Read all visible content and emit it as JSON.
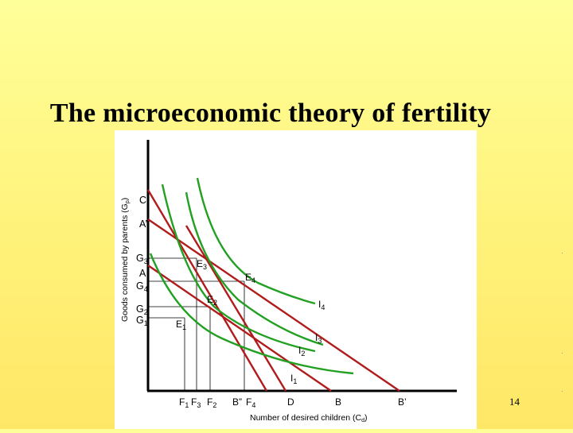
{
  "slide": {
    "title": "The microeconomic theory of fertility",
    "page_number": "14"
  },
  "diagram": {
    "y_axis_label": "Goods consumed by parents (G",
    "y_axis_sub": "p",
    "y_axis_close": ")",
    "x_axis_label": "Number of desired children (C",
    "x_axis_sub": "d",
    "x_axis_close": ")",
    "y_ticks": {
      "C": "C",
      "A_prime": "A’",
      "G3": "G",
      "G3_sub": "3",
      "A": "A",
      "G4": "G",
      "G4_sub": "4",
      "G2": "G",
      "G2_sub": "2",
      "G1": "G",
      "G1_sub": "1"
    },
    "x_ticks": {
      "F1": "F",
      "F1_sub": "1",
      "F3": "F",
      "F3_sub": "3",
      "F2": "F",
      "F2_sub": "2",
      "B_dprime": "B”",
      "F4": "F",
      "F4_sub": "4",
      "D": "D",
      "B": "B",
      "B_prime": "B’"
    },
    "equilibria": {
      "E1": "E",
      "E1_sub": "1",
      "E2": "E",
      "E2_sub": "2",
      "E3": "E",
      "E3_sub": "3",
      "E4": "E",
      "E4_sub": "4"
    },
    "indifference_curves": {
      "I1": "I",
      "I1_sub": "1",
      "I2": "I",
      "I2_sub": "2",
      "I3": "I",
      "I3_sub": "3",
      "I4": "I",
      "I4_sub": "4"
    },
    "colors": {
      "budget_line": "#b01c1c",
      "indifference_curve": "#22a022",
      "axes": "#000000",
      "guides": "#000000"
    }
  }
}
